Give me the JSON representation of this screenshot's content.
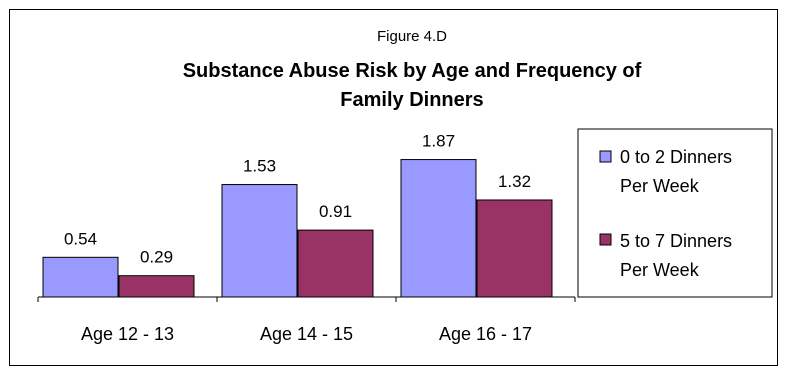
{
  "chart_data": {
    "type": "bar",
    "figure_label": "Figure 4.D",
    "title_lines": [
      "Substance Abuse Risk by Age and Frequency of",
      "Family Dinners"
    ],
    "categories": [
      "Age 12 - 13",
      "Age 14 - 15",
      "Age 16 - 17"
    ],
    "series": [
      {
        "name_lines": [
          "0 to 2 Dinners",
          "Per Week"
        ],
        "values": [
          0.54,
          1.53,
          1.87
        ],
        "value_labels": [
          "0.54",
          "1.53",
          "1.87"
        ],
        "color": "#9999ff"
      },
      {
        "name_lines": [
          "5 to 7 Dinners",
          "Per Week"
        ],
        "values": [
          0.29,
          0.91,
          1.32
        ],
        "value_labels": [
          "0.29",
          "0.91",
          "1.32"
        ],
        "color": "#993366"
      }
    ],
    "ylim": [
      0,
      2.3
    ],
    "grid": false,
    "legend_position": "right"
  }
}
